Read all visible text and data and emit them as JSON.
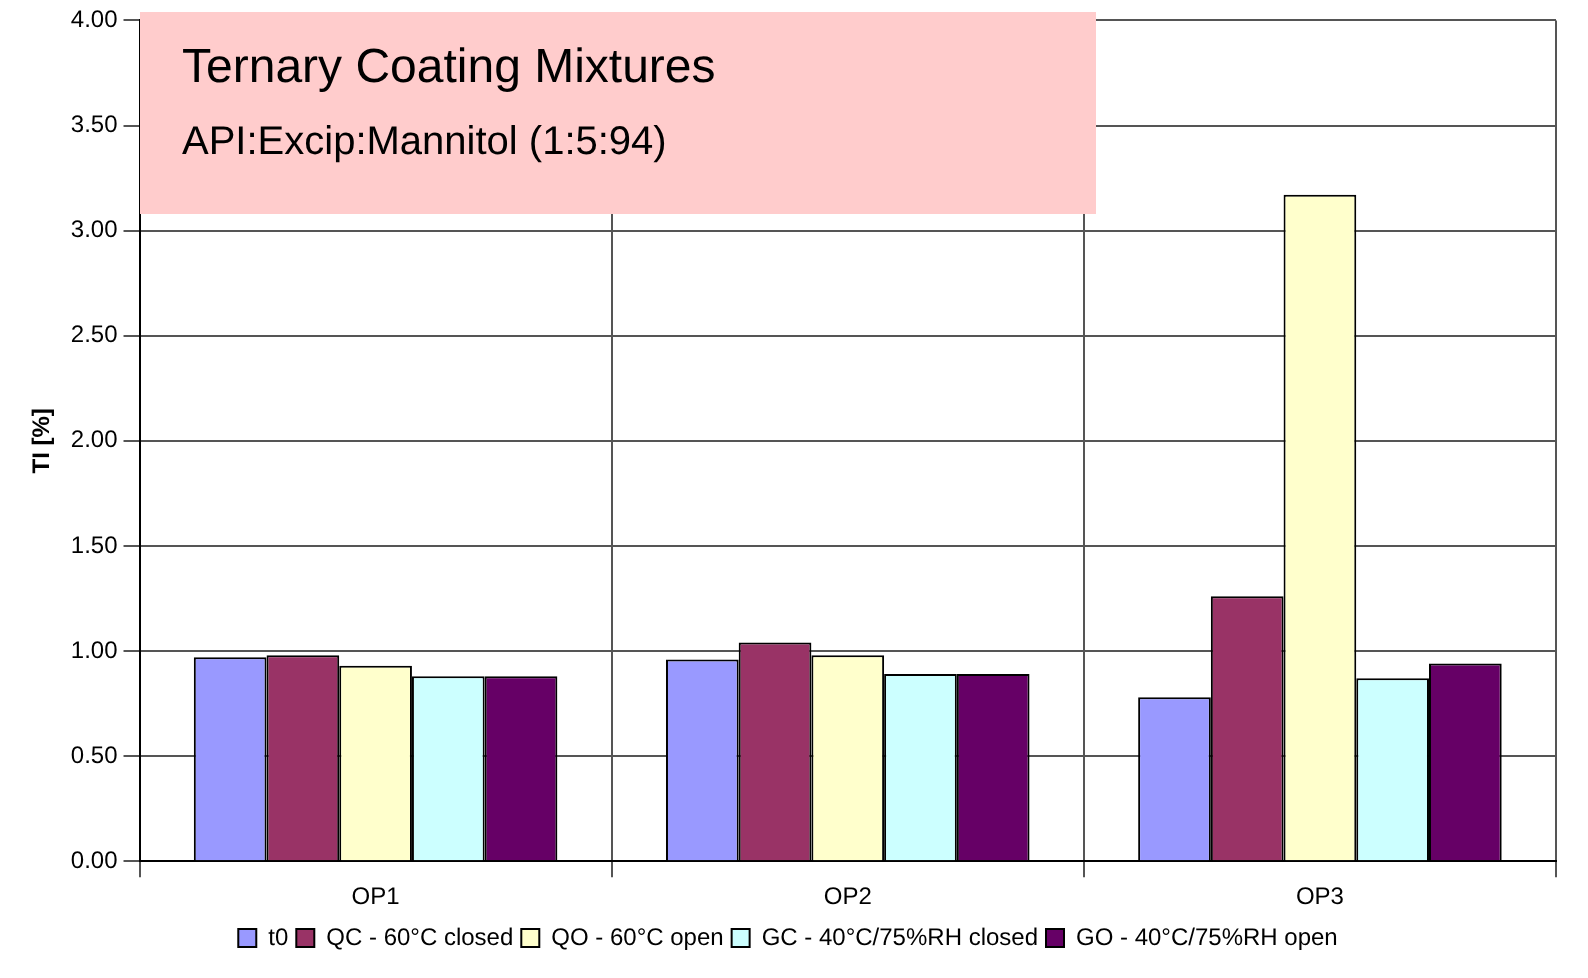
{
  "chart_data": {
    "type": "bar",
    "title": "Ternary Coating Mixtures",
    "subtitle": "API:Excip:Mannitol (1:5:94)",
    "ylabel": "TI [%]",
    "categories": [
      "OP1",
      "OP2",
      "OP3"
    ],
    "series": [
      {
        "name": "t0",
        "color": "#9999ff",
        "values": [
          0.97,
          0.96,
          0.78
        ]
      },
      {
        "name": "QC - 60°C closed",
        "color": "#993366",
        "values": [
          0.98,
          1.04,
          1.26
        ]
      },
      {
        "name": "QO - 60°C open",
        "color": "#ffffcc",
        "values": [
          0.93,
          0.98,
          3.17
        ]
      },
      {
        "name": "GC - 40°C/75%RH closed",
        "color": "#ccffff",
        "values": [
          0.88,
          0.89,
          0.87
        ]
      },
      {
        "name": "GO - 40°C/75%RH open",
        "color": "#660066",
        "values": [
          0.88,
          0.89,
          0.94
        ]
      }
    ],
    "ylim": [
      0,
      4
    ],
    "yticks": [
      {
        "value": 0,
        "label": "0.00"
      },
      {
        "value": 0.5,
        "label": "0.50"
      },
      {
        "value": 1,
        "label": "1.00"
      },
      {
        "value": 1.5,
        "label": "1.50"
      },
      {
        "value": 2,
        "label": "2.00"
      },
      {
        "value": 2.5,
        "label": "2.50"
      },
      {
        "value": 3,
        "label": "3.00"
      },
      {
        "value": 3.5,
        "label": "3.50"
      },
      {
        "value": 4,
        "label": "4.00"
      }
    ],
    "grid": true,
    "legend": "bottom"
  }
}
